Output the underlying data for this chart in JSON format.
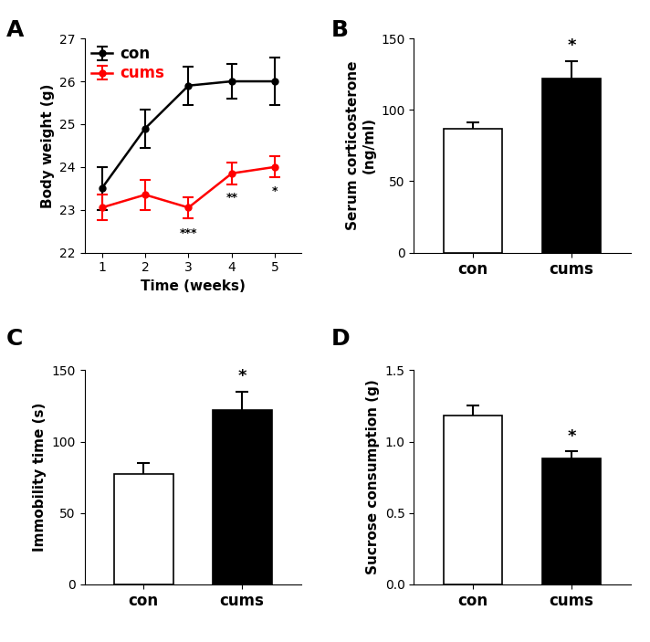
{
  "panel_A": {
    "con_x": [
      1,
      2,
      3,
      4,
      5
    ],
    "con_y": [
      23.5,
      24.9,
      25.9,
      26.0,
      26.0
    ],
    "con_err": [
      0.5,
      0.45,
      0.45,
      0.4,
      0.55
    ],
    "cums_x": [
      1,
      2,
      3,
      4,
      5
    ],
    "cums_y": [
      23.05,
      23.35,
      23.05,
      23.85,
      24.0
    ],
    "cums_err": [
      0.3,
      0.35,
      0.25,
      0.25,
      0.25
    ],
    "con_color": "#000000",
    "cums_color": "#FF0000",
    "xlabel": "Time (weeks)",
    "ylabel": "Body weight (g)",
    "ylim": [
      22,
      27
    ],
    "yticks": [
      22,
      23,
      24,
      25,
      26,
      27
    ],
    "xticks": [
      1,
      2,
      3,
      4,
      5
    ],
    "sig_labels": {
      "3": "***",
      "4": "**",
      "5": "*"
    },
    "legend_labels": [
      "con",
      "cums"
    ]
  },
  "panel_B": {
    "categories": [
      "con",
      "cums"
    ],
    "values": [
      87,
      122
    ],
    "errors": [
      4,
      12
    ],
    "colors": [
      "#FFFFFF",
      "#000000"
    ],
    "ylabel": "Serum corticosterone\n(ng/ml)",
    "ylim": [
      0,
      150
    ],
    "yticks": [
      0,
      50,
      100,
      150
    ],
    "sig_label": "*",
    "sig_index": 1
  },
  "panel_C": {
    "categories": [
      "con",
      "cums"
    ],
    "values": [
      77,
      122
    ],
    "errors": [
      8,
      13
    ],
    "colors": [
      "#FFFFFF",
      "#000000"
    ],
    "ylabel": "Immobility time (s)",
    "ylim": [
      0,
      150
    ],
    "yticks": [
      0,
      50,
      100,
      150
    ],
    "sig_label": "*",
    "sig_index": 1
  },
  "panel_D": {
    "categories": [
      "con",
      "cums"
    ],
    "values": [
      1.18,
      0.88
    ],
    "errors": [
      0.07,
      0.055
    ],
    "colors": [
      "#FFFFFF",
      "#000000"
    ],
    "ylabel": "Sucrose consumption (g)",
    "ylim": [
      0,
      1.5
    ],
    "yticks": [
      0.0,
      0.5,
      1.0,
      1.5
    ],
    "sig_label": "*",
    "sig_index": 1
  },
  "panel_labels": [
    "A",
    "B",
    "C",
    "D"
  ],
  "label_fontsize": 18,
  "axis_fontsize": 11,
  "tick_fontsize": 10
}
